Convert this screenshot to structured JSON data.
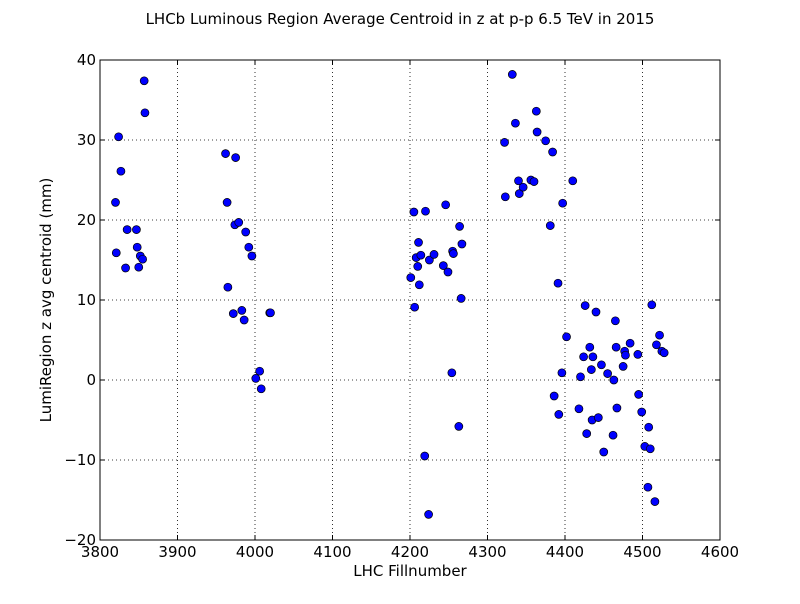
{
  "chart_data": {
    "type": "scatter",
    "title": "LHCb Luminous Region Average Centroid in z at p-p 6.5 TeV in 2015",
    "xlabel": "LHC Fillnumber",
    "ylabel": "LumiRegion z avg centroid (mm)",
    "xlim": [
      3800,
      4600
    ],
    "ylim": [
      -20,
      40
    ],
    "xticks": [
      "3800",
      "3900",
      "4000",
      "4100",
      "4200",
      "4300",
      "4400",
      "4500",
      "4600"
    ],
    "yticks": [
      "−20",
      "−10",
      "0",
      "10",
      "20",
      "30",
      "40"
    ],
    "grid": true,
    "marker_color": "#0000ff",
    "marker_edge": "#000000",
    "points": [
      [
        3820,
        22.2
      ],
      [
        3821,
        15.9
      ],
      [
        3824,
        30.4
      ],
      [
        3827,
        26.1
      ],
      [
        3833,
        14.0
      ],
      [
        3835,
        18.8
      ],
      [
        3847,
        18.8
      ],
      [
        3848,
        16.6
      ],
      [
        3850,
        14.1
      ],
      [
        3852,
        15.5
      ],
      [
        3855,
        15.1
      ],
      [
        3857,
        37.4
      ],
      [
        3858,
        33.4
      ],
      [
        3962,
        28.3
      ],
      [
        3964,
        22.2
      ],
      [
        3965,
        11.6
      ],
      [
        3972,
        8.3
      ],
      [
        3974,
        19.4
      ],
      [
        3975,
        27.8
      ],
      [
        3979,
        19.7
      ],
      [
        3983,
        8.7
      ],
      [
        3986,
        7.5
      ],
      [
        3988,
        18.5
      ],
      [
        3992,
        16.6
      ],
      [
        3996,
        15.5
      ],
      [
        4001,
        0.2
      ],
      [
        4006,
        1.1
      ],
      [
        4008,
        -1.1
      ],
      [
        4019,
        8.4
      ],
      [
        4020,
        8.4
      ],
      [
        4201,
        12.8
      ],
      [
        4205,
        21.0
      ],
      [
        4206,
        9.1
      ],
      [
        4208,
        15.3
      ],
      [
        4210,
        14.2
      ],
      [
        4211,
        17.2
      ],
      [
        4212,
        11.9
      ],
      [
        4214,
        15.6
      ],
      [
        4219,
        -9.5
      ],
      [
        4220,
        21.1
      ],
      [
        4224,
        -16.8
      ],
      [
        4225,
        15.0
      ],
      [
        4231,
        15.7
      ],
      [
        4243,
        14.3
      ],
      [
        4246,
        21.9
      ],
      [
        4249,
        13.5
      ],
      [
        4254,
        0.9
      ],
      [
        4255,
        16.1
      ],
      [
        4256,
        15.8
      ],
      [
        4263,
        -5.8
      ],
      [
        4264,
        19.2
      ],
      [
        4266,
        10.2
      ],
      [
        4267,
        17.0
      ],
      [
        4322,
        29.7
      ],
      [
        4323,
        22.9
      ],
      [
        4332,
        38.2
      ],
      [
        4336,
        32.1
      ],
      [
        4340,
        24.9
      ],
      [
        4341,
        23.3
      ],
      [
        4346,
        24.1
      ],
      [
        4356,
        25.0
      ],
      [
        4360,
        24.8
      ],
      [
        4363,
        33.6
      ],
      [
        4364,
        31.0
      ],
      [
        4375,
        29.9
      ],
      [
        4381,
        19.3
      ],
      [
        4384,
        28.5
      ],
      [
        4386,
        -2.0
      ],
      [
        4391,
        12.1
      ],
      [
        4392,
        -4.3
      ],
      [
        4396,
        0.9
      ],
      [
        4397,
        22.1
      ],
      [
        4402,
        5.4
      ],
      [
        4410,
        24.9
      ],
      [
        4418,
        -3.6
      ],
      [
        4420,
        0.4
      ],
      [
        4424,
        2.9
      ],
      [
        4426,
        9.3
      ],
      [
        4428,
        -6.7
      ],
      [
        4432,
        4.1
      ],
      [
        4434,
        1.3
      ],
      [
        4435,
        -5.0
      ],
      [
        4436,
        2.9
      ],
      [
        4440,
        8.5
      ],
      [
        4443,
        -4.7
      ],
      [
        4447,
        1.9
      ],
      [
        4450,
        -9.0
      ],
      [
        4455,
        0.8
      ],
      [
        4462,
        -6.9
      ],
      [
        4463,
        0.0
      ],
      [
        4465,
        7.4
      ],
      [
        4466,
        4.1
      ],
      [
        4467,
        -3.5
      ],
      [
        4475,
        1.7
      ],
      [
        4477,
        3.6
      ],
      [
        4478,
        3.1
      ],
      [
        4484,
        4.6
      ],
      [
        4494,
        3.2
      ],
      [
        4495,
        -1.8
      ],
      [
        4499,
        -4.0
      ],
      [
        4503,
        -8.3
      ],
      [
        4507,
        -13.4
      ],
      [
        4508,
        -5.9
      ],
      [
        4510,
        -8.6
      ],
      [
        4512,
        9.4
      ],
      [
        4516,
        -15.2
      ],
      [
        4518,
        4.4
      ],
      [
        4522,
        5.6
      ],
      [
        4525,
        3.6
      ],
      [
        4528,
        3.4
      ]
    ]
  }
}
